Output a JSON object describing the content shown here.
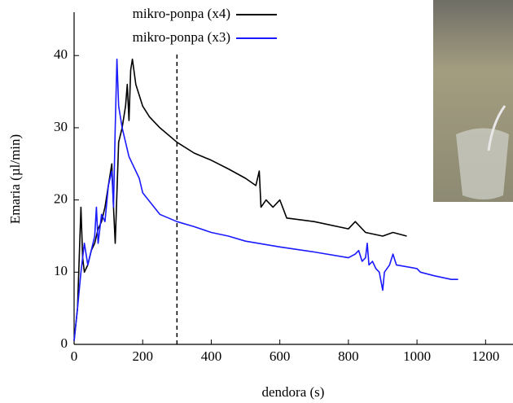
{
  "chart_data": {
    "type": "line",
    "x_label": "dendora (s)",
    "y_label": "Emaria (µl/min)",
    "xlim": [
      0,
      1280
    ],
    "ylim": [
      0,
      46
    ],
    "xticks": [
      0,
      200,
      400,
      600,
      800,
      1000,
      1200
    ],
    "yticks": [
      0,
      10,
      20,
      30,
      40
    ],
    "vline": 300,
    "legend": "top-left",
    "series": [
      {
        "name": "mikro-ponpa (x4)",
        "color": "#000000",
        "x": [
          0,
          10,
          20,
          25,
          30,
          40,
          50,
          60,
          70,
          80,
          90,
          100,
          110,
          115,
          120,
          130,
          140,
          150,
          155,
          160,
          165,
          170,
          180,
          200,
          220,
          250,
          300,
          350,
          400,
          450,
          500,
          530,
          540,
          545,
          560,
          580,
          600,
          620,
          700,
          800,
          820,
          850,
          900,
          930,
          970
        ],
        "values": [
          0.5,
          5,
          19,
          12,
          10,
          11,
          13,
          14,
          16,
          17,
          19,
          22,
          25,
          19,
          14,
          28,
          30,
          33,
          36,
          31,
          38,
          39.5,
          36,
          33,
          31.5,
          30,
          28,
          26.5,
          25.5,
          24.3,
          23,
          22,
          24,
          19,
          20,
          19,
          20,
          17.5,
          17,
          16,
          17,
          15.5,
          15,
          15.5,
          15
        ]
      },
      {
        "name": "mikro-ponpa (x3)",
        "color": "#1a1aff",
        "x": [
          0,
          10,
          20,
          30,
          40,
          50,
          60,
          65,
          70,
          80,
          90,
          100,
          110,
          115,
          120,
          125,
          130,
          140,
          150,
          160,
          170,
          180,
          190,
          200,
          250,
          300,
          350,
          400,
          450,
          500,
          600,
          700,
          800,
          820,
          830,
          840,
          850,
          855,
          860,
          870,
          880,
          890,
          900,
          905,
          920,
          930,
          940,
          1000,
          1010,
          1050,
          1100,
          1120
        ],
        "values": [
          0.5,
          5,
          10,
          14,
          11,
          13,
          15,
          19,
          14,
          18,
          17,
          22,
          24,
          19,
          30,
          39.5,
          33,
          30,
          28,
          26,
          25,
          24,
          23,
          21,
          18,
          17,
          16.3,
          15.5,
          15,
          14.3,
          13.5,
          12.8,
          12,
          12.5,
          13,
          11.5,
          12,
          14,
          11,
          11.5,
          10.5,
          10,
          7.5,
          10,
          11,
          12.5,
          11,
          10.5,
          10,
          9.5,
          9,
          9
        ]
      }
    ]
  }
}
